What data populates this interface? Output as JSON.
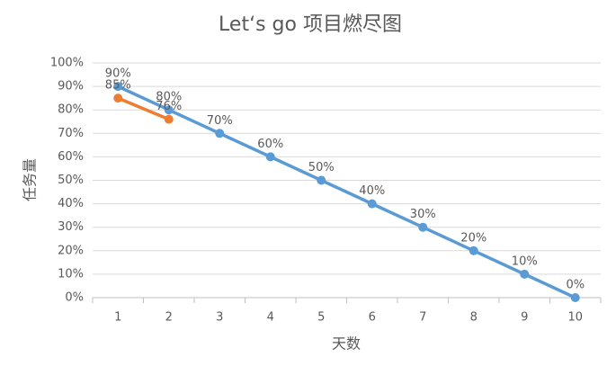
{
  "chart_data": {
    "type": "line",
    "title": "Let‘s go 项目燃尽图",
    "x_label": "天数",
    "y_label": "任务量",
    "categories": [
      "1",
      "2",
      "3",
      "4",
      "5",
      "6",
      "7",
      "8",
      "9",
      "10"
    ],
    "series": [
      {
        "color": "#5b9bd5",
        "values": [
          90,
          80,
          70,
          60,
          50,
          40,
          30,
          20,
          10,
          0
        ],
        "value_labels": [
          "90%",
          "80%",
          "70%",
          "60%",
          "50%",
          "40%",
          "30%",
          "20%",
          "10%",
          "0%"
        ]
      },
      {
        "color": "#ed7d31",
        "values": [
          85,
          76,
          null,
          null,
          null,
          null,
          null,
          null,
          null,
          null
        ],
        "value_labels": [
          "85%",
          "76%",
          null,
          null,
          null,
          null,
          null,
          null,
          null,
          null
        ]
      }
    ],
    "ylim": [
      0,
      100
    ],
    "yticks": [
      {
        "value": 0,
        "label": "0%"
      },
      {
        "value": 10,
        "label": "10%"
      },
      {
        "value": 20,
        "label": "20%"
      },
      {
        "value": 30,
        "label": "30%"
      },
      {
        "value": 40,
        "label": "40%"
      },
      {
        "value": 50,
        "label": "50%"
      },
      {
        "value": 60,
        "label": "60%"
      },
      {
        "value": 70,
        "label": "70%"
      },
      {
        "value": 80,
        "label": "80%"
      },
      {
        "value": 90,
        "label": "90%"
      },
      {
        "value": 100,
        "label": "100%"
      }
    ],
    "grid": true
  }
}
